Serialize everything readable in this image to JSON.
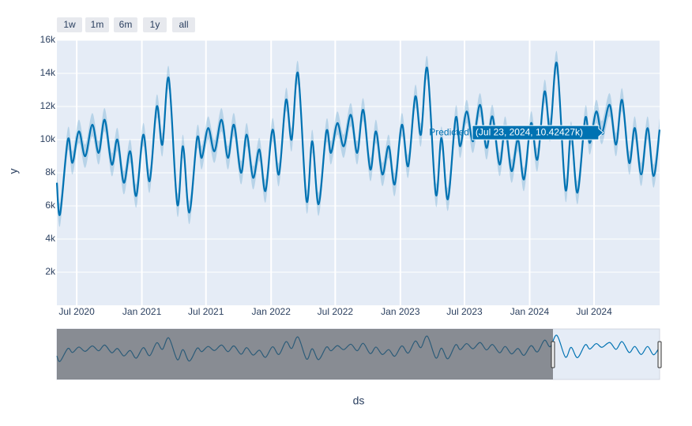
{
  "chart_data": {
    "type": "line",
    "xlabel": "ds",
    "ylabel": "y",
    "range_buttons": [
      "1w",
      "1m",
      "6m",
      "1y",
      "all"
    ],
    "xlim": [
      "2020-05-06",
      "2025-01-02"
    ],
    "xticks": [
      {
        "value": "2020-07-01",
        "label": "Jul 2020"
      },
      {
        "value": "2021-01-01",
        "label": "Jan 2021"
      },
      {
        "value": "2021-07-01",
        "label": "Jul 2021"
      },
      {
        "value": "2022-01-01",
        "label": "Jan 2022"
      },
      {
        "value": "2022-07-01",
        "label": "Jul 2022"
      },
      {
        "value": "2023-01-01",
        "label": "Jan 2023"
      },
      {
        "value": "2023-07-01",
        "label": "Jul 2023"
      },
      {
        "value": "2024-01-01",
        "label": "Jan 2024"
      },
      {
        "value": "2024-07-01",
        "label": "Jul 2024"
      }
    ],
    "ylim": [
      0,
      16000
    ],
    "yticks": [
      {
        "value": 2000,
        "label": "2k"
      },
      {
        "value": 4000,
        "label": "4k"
      },
      {
        "value": 6000,
        "label": "6k"
      },
      {
        "value": 8000,
        "label": "8k"
      },
      {
        "value": 10000,
        "label": "10k"
      },
      {
        "value": 12000,
        "label": "12k"
      },
      {
        "value": 14000,
        "label": "14k"
      },
      {
        "value": 16000,
        "label": "16k"
      }
    ],
    "grid": true,
    "x": [
      "2020-05-06",
      "2020-05-15",
      "2020-06-06",
      "2020-06-19",
      "2020-07-07",
      "2020-07-25",
      "2020-08-14",
      "2020-09-01",
      "2020-09-18",
      "2020-10-08",
      "2020-10-24",
      "2020-11-11",
      "2020-11-29",
      "2020-12-16",
      "2021-01-05",
      "2021-01-23",
      "2021-02-12",
      "2021-02-28",
      "2021-03-18",
      "2021-04-11",
      "2021-04-27",
      "2021-05-15",
      "2021-06-06",
      "2021-06-19",
      "2021-07-07",
      "2021-07-25",
      "2021-08-14",
      "2021-09-01",
      "2021-09-18",
      "2021-10-08",
      "2021-10-24",
      "2021-11-11",
      "2021-11-29",
      "2021-12-16",
      "2022-01-05",
      "2022-01-23",
      "2022-02-12",
      "2022-02-28",
      "2022-03-18",
      "2022-04-11",
      "2022-04-27",
      "2022-05-15",
      "2022-06-06",
      "2022-06-19",
      "2022-07-07",
      "2022-07-25",
      "2022-08-14",
      "2022-09-01",
      "2022-09-18",
      "2022-10-08",
      "2022-10-24",
      "2022-11-11",
      "2022-11-29",
      "2022-12-16",
      "2023-01-05",
      "2023-01-23",
      "2023-02-12",
      "2023-02-28",
      "2023-03-18",
      "2023-04-11",
      "2023-04-27",
      "2023-05-15",
      "2023-06-06",
      "2023-06-19",
      "2023-07-07",
      "2023-07-25",
      "2023-08-14",
      "2023-09-01",
      "2023-09-18",
      "2023-10-08",
      "2023-10-24",
      "2023-11-11",
      "2023-11-29",
      "2023-12-16",
      "2024-01-05",
      "2024-01-23",
      "2024-02-12",
      "2024-02-28",
      "2024-03-18",
      "2024-04-11",
      "2024-04-27",
      "2024-05-15",
      "2024-06-06",
      "2024-06-19",
      "2024-07-07",
      "2024-07-23",
      "2024-08-14",
      "2024-09-01",
      "2024-09-18",
      "2024-10-08",
      "2024-10-24",
      "2024-11-11",
      "2024-11-29",
      "2024-12-16",
      "2025-01-02"
    ],
    "series": [
      {
        "name": "Predicted",
        "color": "#0072b2",
        "band": 700,
        "values": [
          7400,
          5500,
          10000,
          8600,
          10500,
          9000,
          10900,
          9200,
          11200,
          8500,
          10000,
          7400,
          9300,
          6600,
          10300,
          7500,
          12000,
          9700,
          13700,
          6100,
          9600,
          5600,
          10100,
          8900,
          10700,
          9300,
          11200,
          8900,
          10900,
          8000,
          10300,
          7700,
          9400,
          6900,
          10600,
          7900,
          12400,
          10000,
          14000,
          6300,
          9900,
          6100,
          10500,
          9200,
          11000,
          9600,
          11500,
          9200,
          11800,
          8200,
          10500,
          7900,
          9600,
          7300,
          10900,
          8400,
          12600,
          10300,
          14300,
          6700,
          10100,
          6400,
          11300,
          9600,
          11700,
          9900,
          12100,
          9500,
          11400,
          8500,
          10700,
          8100,
          10000,
          7600,
          11000,
          8800,
          12900,
          10600,
          14600,
          7000,
          10400,
          6800,
          11300,
          9800,
          11700,
          10424.27,
          12100,
          9700,
          12400,
          8600,
          10700,
          7900,
          10700,
          7800,
          10600
        ]
      }
    ],
    "hover": {
      "index": 85,
      "text": "(Jul 23, 2024, 10.42427k)"
    }
  }
}
